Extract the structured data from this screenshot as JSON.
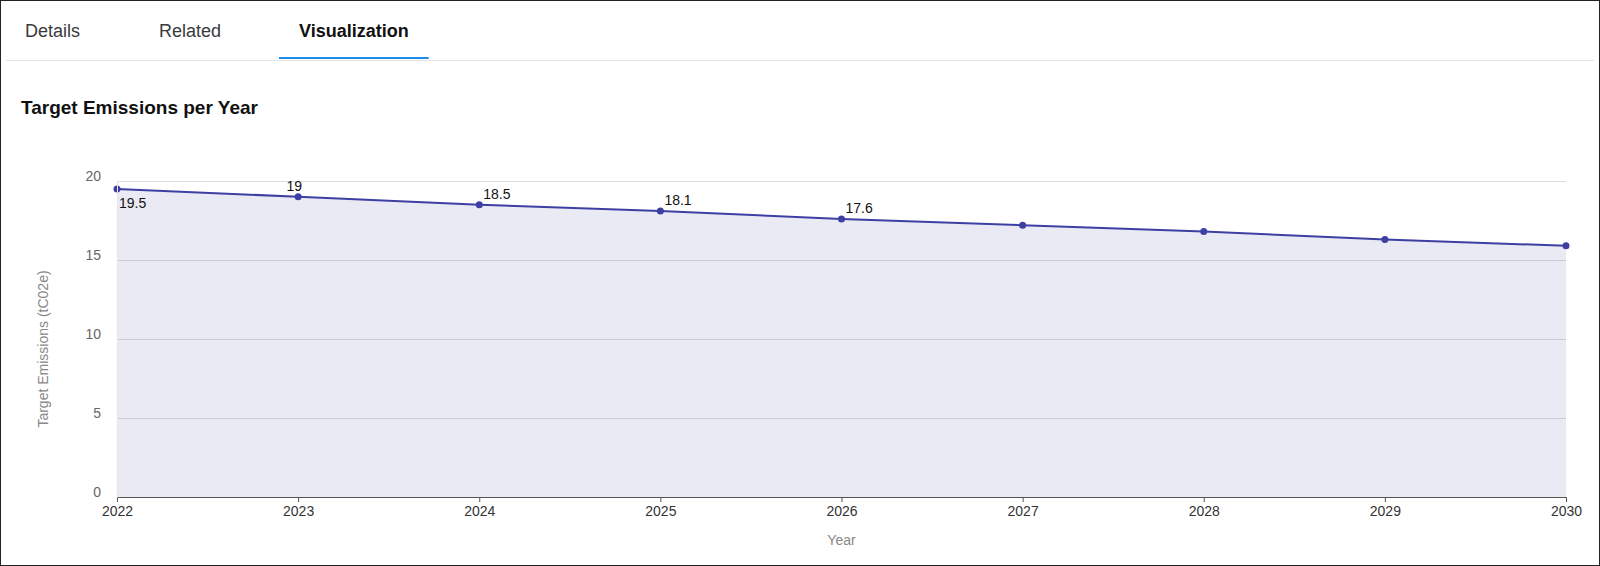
{
  "tabs": [
    "Details",
    "Related",
    "Visualization"
  ],
  "active_tab": "Visualization",
  "chart_data": {
    "type": "area",
    "title": "Target Emissions per Year",
    "x_label": "Year",
    "y_label": "Target Emissions (tC02e)",
    "x": [
      2022,
      2023,
      2024,
      2025,
      2026,
      2027,
      2028,
      2029,
      2030
    ],
    "values": [
      19.5,
      19,
      18.5,
      18.1,
      17.6,
      17.2,
      16.8,
      16.3,
      15.9
    ],
    "value_labels": [
      "19.5",
      "19",
      "18.5",
      "18.1",
      "17.6",
      null,
      null,
      null,
      null
    ],
    "data_labels": true,
    "xlim": [
      2022,
      2030
    ],
    "xticks": [
      2022,
      2023,
      2024,
      2025,
      2026,
      2027,
      2028,
      2029,
      2030
    ],
    "ylim": [
      0,
      20
    ],
    "yticks": [
      0,
      5,
      10,
      15,
      20
    ],
    "grid": true,
    "color": "#3e3fa3",
    "marker": "circle"
  }
}
